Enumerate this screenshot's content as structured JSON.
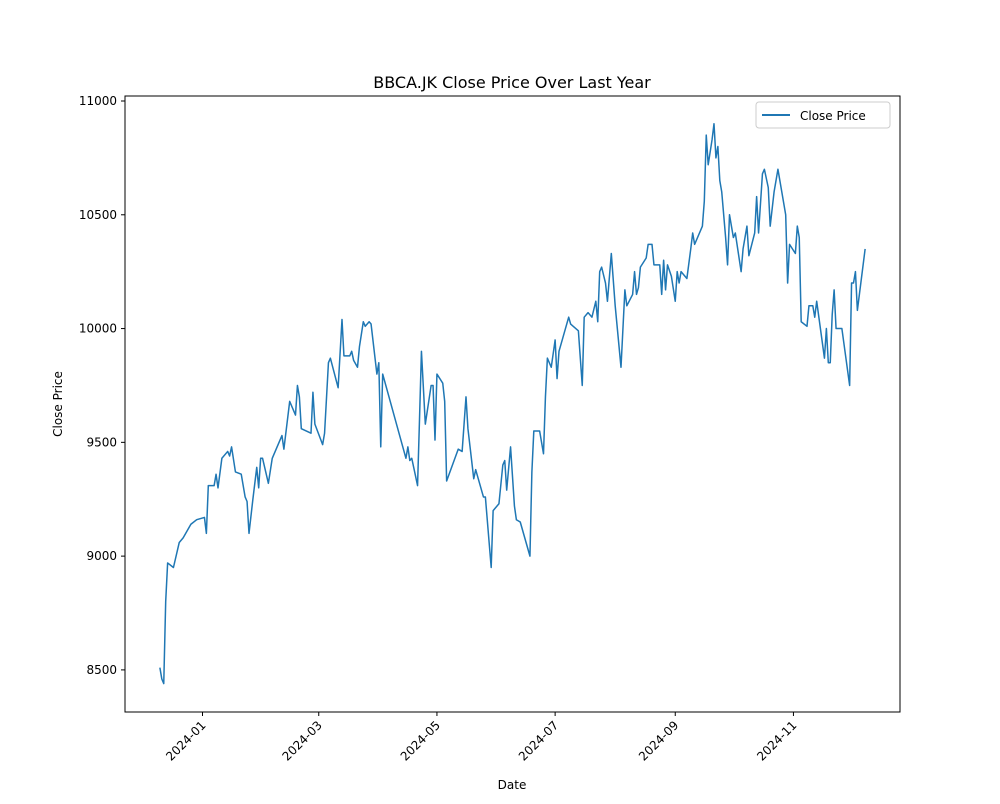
{
  "chart_data": {
    "type": "line",
    "title": "BBCA.JK Close Price Over Last Year",
    "x_label": "Date",
    "y_label": "Close Price",
    "xlim": [
      19683,
      20083
    ],
    "ylim": [
      8315,
      11022
    ],
    "xticks": [
      {
        "value": 19723,
        "label": "2024-01"
      },
      {
        "value": 19783,
        "label": "2024-03"
      },
      {
        "value": 19844,
        "label": "2024-05"
      },
      {
        "value": 19905,
        "label": "2024-07"
      },
      {
        "value": 19967,
        "label": "2024-09"
      },
      {
        "value": 20028,
        "label": "2024-11"
      }
    ],
    "yticks": [
      8500,
      9000,
      9500,
      10000,
      10500,
      11000
    ],
    "legend_position": "upper-right",
    "x": [
      19701,
      19702,
      19703,
      19704,
      19705,
      19708,
      19711,
      19713,
      19717,
      19720,
      19724,
      19725,
      19726,
      19729,
      19730,
      19731,
      19733,
      19736,
      19737,
      19738,
      19740,
      19743,
      19745,
      19746,
      19747,
      19749,
      19751,
      19752,
      19753,
      19754,
      19757,
      19759,
      19764,
      19765,
      19768,
      19771,
      19772,
      19773,
      19774,
      19779,
      19780,
      19781,
      19785,
      19786,
      19788,
      19789,
      19793,
      19795,
      19796,
      19799,
      19800,
      19801,
      19803,
      19804,
      19806,
      19807,
      19809,
      19810,
      19813,
      19814,
      19815,
      19816,
      19828,
      19829,
      19830,
      19831,
      19834,
      19835,
      19836,
      19838,
      19841,
      19842,
      19843,
      19844,
      19847,
      19848,
      19849,
      19855,
      19857,
      19858,
      19859,
      19860,
      19863,
      19864,
      19868,
      19869,
      19872,
      19873,
      19876,
      19878,
      19879,
      19880,
      19882,
      19884,
      19885,
      19887,
      19892,
      19893,
      19894,
      19897,
      19899,
      19900,
      19901,
      19903,
      19905,
      19906,
      19907,
      19912,
      19913,
      19917,
      19919,
      19920,
      19922,
      19924,
      19926,
      19927,
      19928,
      19929,
      19931,
      19932,
      19934,
      19936,
      19939,
      19941,
      19942,
      19945,
      19946,
      19947,
      19948,
      19949,
      19952,
      19953,
      19955,
      19956,
      19959,
      19960,
      19961,
      19962,
      19963,
      19965,
      19967,
      19968,
      19969,
      19970,
      19973,
      19975,
      19976,
      19977,
      19981,
      19982,
      19983,
      19984,
      19986,
      19987,
      19988,
      19989,
      19990,
      19991,
      19993,
      19994,
      19995,
      19997,
      19998,
      20001,
      20002,
      20004,
      20005,
      20008,
      20009,
      20010,
      20012,
      20013,
      20015,
      20016,
      20018,
      20020,
      20022,
      20024,
      20025,
      20026,
      20029,
      20030,
      20031,
      20032,
      20035,
      20036,
      20038,
      20039,
      20040,
      20044,
      20045,
      20046,
      20047,
      20048,
      20049,
      20050,
      20053,
      20057,
      20058,
      20059,
      20060,
      20061,
      20065
    ],
    "series": [
      {
        "name": "Close Price",
        "color": "#1f77b4",
        "values": [
          8510,
          8460,
          8440,
          8800,
          8970,
          8950,
          9060,
          9080,
          9140,
          9160,
          9170,
          9100,
          9310,
          9310,
          9360,
          9300,
          9430,
          9460,
          9440,
          9480,
          9370,
          9360,
          9260,
          9240,
          9100,
          9250,
          9390,
          9300,
          9430,
          9430,
          9320,
          9430,
          9530,
          9470,
          9680,
          9620,
          9750,
          9700,
          9560,
          9540,
          9720,
          9580,
          9490,
          9540,
          9850,
          9870,
          9740,
          10040,
          9880,
          9880,
          9900,
          9860,
          9830,
          9920,
          10030,
          10010,
          10030,
          10020,
          9800,
          9850,
          9480,
          9800,
          9430,
          9480,
          9420,
          9430,
          9310,
          9600,
          9900,
          9580,
          9750,
          9750,
          9510,
          9800,
          9760,
          9680,
          9330,
          9470,
          9460,
          9580,
          9700,
          9560,
          9340,
          9380,
          9260,
          9260,
          8950,
          9200,
          9230,
          9400,
          9420,
          9290,
          9480,
          9220,
          9160,
          9150,
          9000,
          9370,
          9550,
          9550,
          9450,
          9700,
          9870,
          9830,
          9950,
          9780,
          9900,
          10050,
          10020,
          9990,
          9750,
          10050,
          10070,
          10050,
          10120,
          10030,
          10250,
          10270,
          10200,
          10120,
          10330,
          10100,
          9830,
          10170,
          10100,
          10150,
          10250,
          10150,
          10180,
          10270,
          10310,
          10370,
          10370,
          10280,
          10280,
          10150,
          10300,
          10170,
          10280,
          10230,
          10120,
          10250,
          10200,
          10250,
          10220,
          10350,
          10420,
          10370,
          10450,
          10560,
          10850,
          10720,
          10830,
          10900,
          10750,
          10800,
          10650,
          10600,
          10400,
          10280,
          10500,
          10400,
          10420,
          10250,
          10350,
          10450,
          10320,
          10420,
          10580,
          10420,
          10680,
          10700,
          10620,
          10450,
          10600,
          10700,
          10600,
          10500,
          10200,
          10370,
          10330,
          10450,
          10400,
          10030,
          10010,
          10100,
          10100,
          10050,
          10120,
          9870,
          10000,
          9850,
          9850,
          10060,
          10170,
          10000,
          10000,
          9750,
          10200,
          10200,
          10250,
          10080,
          10350
        ]
      }
    ]
  }
}
